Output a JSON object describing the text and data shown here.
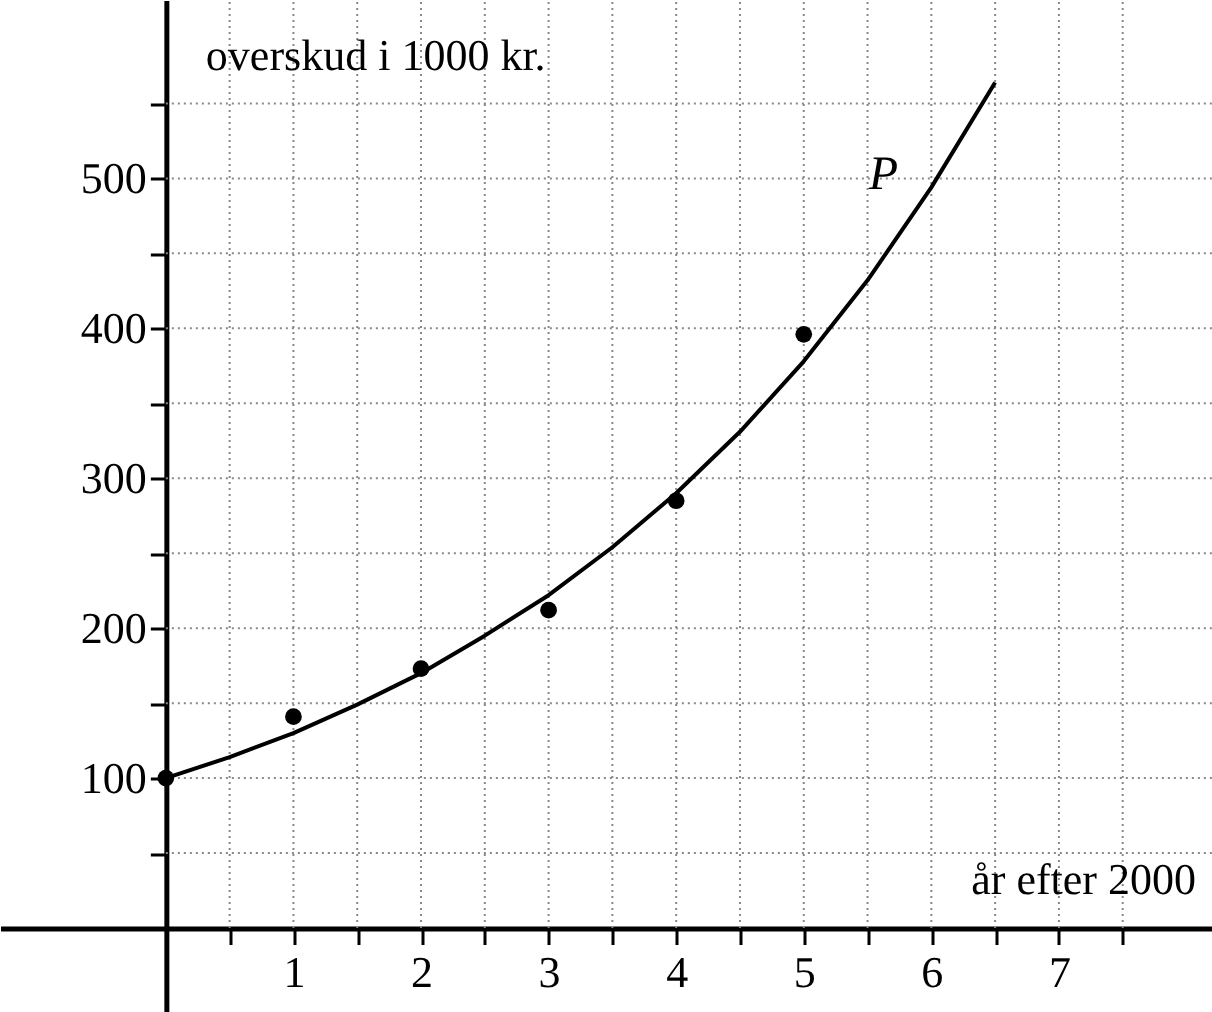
{
  "chart_data": {
    "type": "scatter",
    "xlabel": "år efter 2000",
    "ylabel": "overskud i 1000 kr.",
    "series": [
      {
        "color": "#000000",
        "marker": "circle",
        "x": [
          0,
          1,
          2,
          3,
          4,
          5
        ],
        "values": [
          100,
          141,
          173,
          212,
          285,
          396
        ]
      },
      {
        "type": "line",
        "name": "P",
        "color": "#000000",
        "marker": "none",
        "line_style": "solid",
        "x": [
          0,
          0.5,
          1,
          1.5,
          2,
          2.5,
          3,
          3.5,
          4,
          4.5,
          5,
          5.5,
          6,
          6.5
        ],
        "values": [
          100,
          114,
          130,
          149,
          170,
          195,
          222,
          254,
          290,
          331,
          378,
          432,
          494,
          564
        ]
      }
    ],
    "xlim": [
      -1.3,
      8.2
    ],
    "ylim": [
      -56,
      619
    ],
    "xticks": [
      {
        "value": 0.5,
        "label": null
      },
      1,
      {
        "value": 1.5,
        "label": null
      },
      2,
      {
        "value": 2.5,
        "label": null
      },
      3,
      {
        "value": 3.5,
        "label": null
      },
      4,
      {
        "value": 4.5,
        "label": null
      },
      5,
      {
        "value": 5.5,
        "label": null
      },
      6,
      {
        "value": 6.5,
        "label": null
      },
      7,
      {
        "value": 7.5,
        "label": null
      }
    ],
    "yticks": [
      {
        "value": 50,
        "label": null
      },
      100,
      {
        "value": 150,
        "label": null
      },
      200,
      {
        "value": 250,
        "label": null
      },
      300,
      {
        "value": 350,
        "label": null
      },
      400,
      {
        "value": 450,
        "label": null
      },
      500,
      {
        "value": 550,
        "label": null
      }
    ],
    "grid": true
  }
}
